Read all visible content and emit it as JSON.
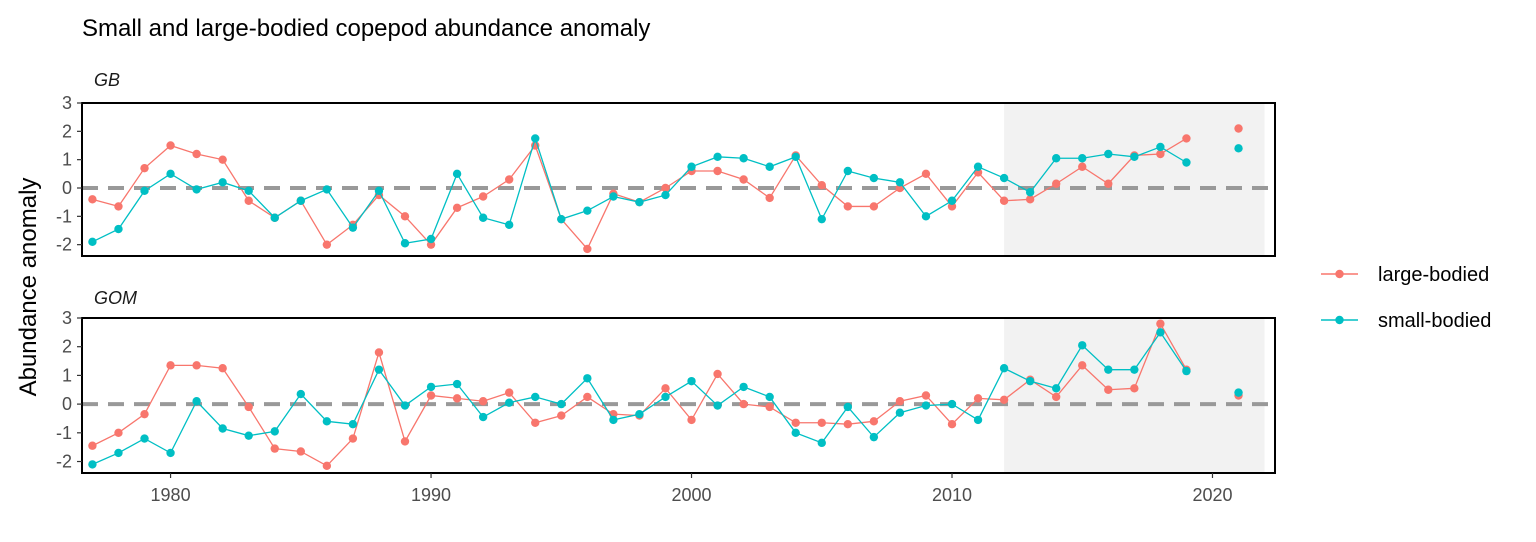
{
  "chart_data": {
    "type": "line",
    "title": "Small and large-bodied copepod abundance anomaly",
    "ylabel": "Abundance anomaly",
    "xlabel": "",
    "xlim": [
      1976.6,
      2022.4
    ],
    "ylim": [
      -2.4,
      3
    ],
    "x_ticks": [
      1980,
      1990,
      2000,
      2010,
      2020
    ],
    "y_ticks": [
      -2,
      -1,
      0,
      1,
      2,
      3
    ],
    "reference_line_y": 0,
    "shaded_x_range": [
      2012,
      2022
    ],
    "legend_position": "right",
    "legend": [
      {
        "name": "large-bodied",
        "color": "#F8766D"
      },
      {
        "name": "small-bodied",
        "color": "#00BFC4"
      }
    ],
    "panels": [
      {
        "label": "GB",
        "series": [
          {
            "name": "large-bodied",
            "color": "#F8766D",
            "x": [
              1977,
              1978,
              1979,
              1980,
              1981,
              1982,
              1983,
              1984,
              1985,
              1986,
              1987,
              1988,
              1989,
              1990,
              1991,
              1992,
              1993,
              1994,
              1995,
              1996,
              1997,
              1998,
              1999,
              2000,
              2001,
              2002,
              2003,
              2004,
              2005,
              2006,
              2007,
              2008,
              2009,
              2010,
              2011,
              2012,
              2013,
              2014,
              2015,
              2016,
              2017,
              2018,
              2019,
              2021
            ],
            "y": [
              -0.4,
              -0.65,
              0.7,
              1.5,
              1.2,
              1.0,
              -0.45,
              -1.05,
              -0.45,
              -2.0,
              -1.3,
              -0.25,
              -1.0,
              -2.0,
              -0.7,
              -0.3,
              0.3,
              1.5,
              -1.1,
              -2.15,
              -0.2,
              -0.5,
              0.0,
              0.6,
              0.6,
              0.3,
              -0.35,
              1.15,
              0.1,
              -0.65,
              -0.65,
              0.0,
              0.5,
              -0.65,
              0.55,
              -0.45,
              -0.4,
              0.15,
              0.75,
              0.15,
              1.15,
              1.2,
              1.75,
              2.1
            ]
          },
          {
            "name": "small-bodied",
            "color": "#00BFC4",
            "x": [
              1977,
              1978,
              1979,
              1980,
              1981,
              1982,
              1983,
              1984,
              1985,
              1986,
              1987,
              1988,
              1989,
              1990,
              1991,
              1992,
              1993,
              1994,
              1995,
              1996,
              1997,
              1998,
              1999,
              2000,
              2001,
              2002,
              2003,
              2004,
              2005,
              2006,
              2007,
              2008,
              2009,
              2010,
              2011,
              2012,
              2013,
              2014,
              2015,
              2016,
              2017,
              2018,
              2019,
              2021
            ],
            "y": [
              -1.9,
              -1.45,
              -0.1,
              0.5,
              -0.05,
              0.2,
              -0.1,
              -1.05,
              -0.45,
              -0.05,
              -1.4,
              -0.1,
              -1.95,
              -1.8,
              0.5,
              -1.05,
              -1.3,
              1.75,
              -1.1,
              -0.8,
              -0.3,
              -0.5,
              -0.25,
              0.75,
              1.1,
              1.05,
              0.75,
              1.1,
              -1.1,
              0.6,
              0.35,
              0.2,
              -1.0,
              -0.45,
              0.75,
              0.35,
              -0.15,
              1.05,
              1.05,
              1.2,
              1.1,
              1.45,
              0.9,
              1.4
            ]
          }
        ]
      },
      {
        "label": "GOM",
        "series": [
          {
            "name": "large-bodied",
            "color": "#F8766D",
            "x": [
              1977,
              1978,
              1979,
              1980,
              1981,
              1982,
              1983,
              1984,
              1985,
              1986,
              1987,
              1988,
              1989,
              1990,
              1991,
              1992,
              1993,
              1994,
              1995,
              1996,
              1997,
              1998,
              1999,
              2000,
              2001,
              2002,
              2003,
              2004,
              2005,
              2006,
              2007,
              2008,
              2009,
              2010,
              2011,
              2012,
              2013,
              2014,
              2015,
              2016,
              2017,
              2018,
              2019,
              2021
            ],
            "y": [
              -1.45,
              -1.0,
              -0.35,
              1.35,
              1.35,
              1.25,
              -0.1,
              -1.55,
              -1.65,
              -2.15,
              -1.2,
              1.8,
              -1.3,
              0.3,
              0.2,
              0.1,
              0.4,
              -0.65,
              -0.4,
              0.25,
              -0.35,
              -0.4,
              0.55,
              -0.55,
              1.05,
              0.0,
              -0.1,
              -0.65,
              -0.65,
              -0.7,
              -0.6,
              0.1,
              0.3,
              -0.7,
              0.2,
              0.15,
              0.85,
              0.25,
              1.35,
              0.5,
              0.55,
              2.8,
              1.2,
              0.3
            ]
          },
          {
            "name": "small-bodied",
            "color": "#00BFC4",
            "x": [
              1977,
              1978,
              1979,
              1980,
              1981,
              1982,
              1983,
              1984,
              1985,
              1986,
              1987,
              1988,
              1989,
              1990,
              1991,
              1992,
              1993,
              1994,
              1995,
              1996,
              1997,
              1998,
              1999,
              2000,
              2001,
              2002,
              2003,
              2004,
              2005,
              2006,
              2007,
              2008,
              2009,
              2010,
              2011,
              2012,
              2013,
              2014,
              2015,
              2016,
              2017,
              2018,
              2019,
              2021
            ],
            "y": [
              -2.1,
              -1.7,
              -1.2,
              -1.7,
              0.1,
              -0.85,
              -1.1,
              -0.95,
              0.35,
              -0.6,
              -0.7,
              1.2,
              -0.05,
              0.6,
              0.7,
              -0.45,
              0.05,
              0.25,
              0.0,
              0.9,
              -0.55,
              -0.35,
              0.25,
              0.8,
              -0.05,
              0.6,
              0.25,
              -1.0,
              -1.35,
              -0.1,
              -1.15,
              -0.3,
              -0.05,
              0.0,
              -0.55,
              1.25,
              0.8,
              0.55,
              2.05,
              1.2,
              1.2,
              2.5,
              1.15,
              0.4
            ]
          }
        ]
      }
    ]
  }
}
